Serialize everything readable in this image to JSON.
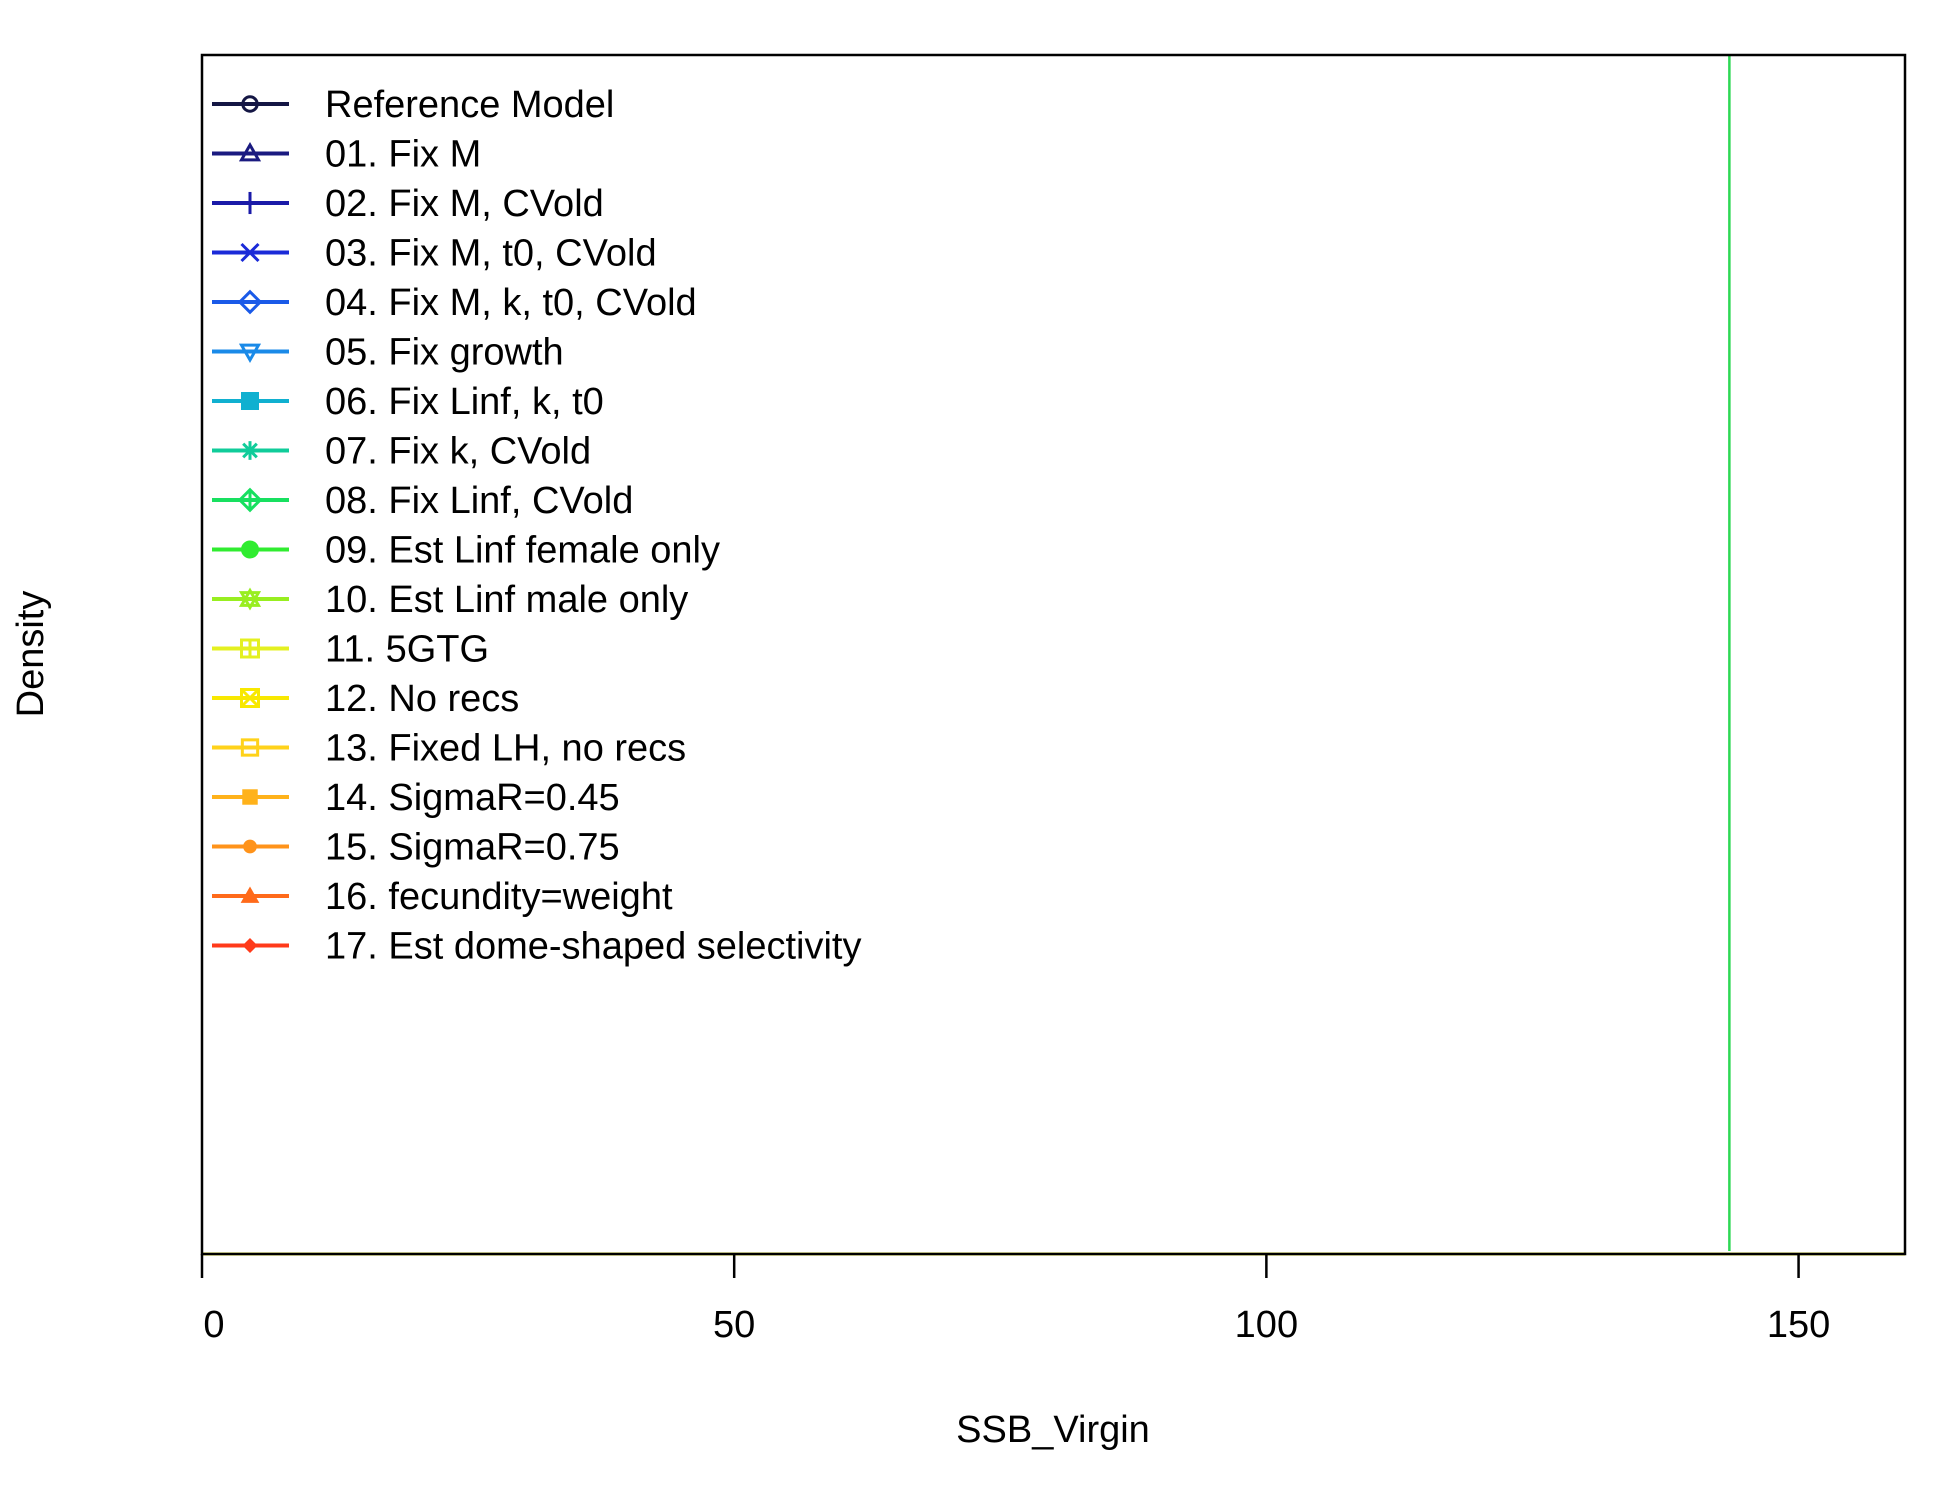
{
  "chart_data": {
    "type": "line",
    "title": "",
    "xlabel": "SSB_Virgin",
    "ylabel": "Density",
    "xlim": [
      0,
      160
    ],
    "ylim": [
      0,
      1
    ],
    "x_ticks": [
      0,
      50,
      100,
      150
    ],
    "grid": false,
    "legend_position": "top-left",
    "series": [
      {
        "name": "Reference Model",
        "color": "#141644",
        "marker": "circle-open"
      },
      {
        "name": "01. Fix M",
        "color": "#1a1a80",
        "marker": "triangle-open"
      },
      {
        "name": "02. Fix M, CVold",
        "color": "#1a1aa8",
        "marker": "plus"
      },
      {
        "name": "03. Fix M, t0, CVold",
        "color": "#1a2ad8",
        "marker": "cross"
      },
      {
        "name": "04. Fix M, k, t0, CVold",
        "color": "#1a5ae8",
        "marker": "diamond-open"
      },
      {
        "name": "05. Fix growth",
        "color": "#1a8ae8",
        "marker": "triangle-down-open"
      },
      {
        "name": "06. Fix Linf, k, t0",
        "color": "#10b0d0",
        "marker": "square-cross"
      },
      {
        "name": "07. Fix k, CVold",
        "color": "#10cc9a",
        "marker": "asterisk"
      },
      {
        "name": "08. Fix Linf, CVold",
        "color": "#18e060",
        "marker": "diamond-plus"
      },
      {
        "name": "09. Est Linf female only",
        "color": "#30ec30",
        "marker": "circle-plus"
      },
      {
        "name": "10. Est Linf male only",
        "color": "#98ee20",
        "marker": "star"
      },
      {
        "name": "11. 5GTG",
        "color": "#e4f020",
        "marker": "square-plus"
      },
      {
        "name": "12. No recs",
        "color": "#f8e800",
        "marker": "square-x"
      },
      {
        "name": "13. Fixed LH, no recs",
        "color": "#ffd21a",
        "marker": "square-open"
      },
      {
        "name": "14. SigmaR=0.45",
        "color": "#ffb21a",
        "marker": "square"
      },
      {
        "name": "15. SigmaR=0.75",
        "color": "#ff931a",
        "marker": "circle"
      },
      {
        "name": "16. fecundity=weight",
        "color": "#ff6a1a",
        "marker": "triangle"
      },
      {
        "name": "17. Est dome-shaped selectivity",
        "color": "#ff3a1a",
        "marker": "diamond"
      }
    ],
    "baseline_color": "#d8dc00",
    "vertical_lines": [
      {
        "x": 143.5,
        "color": "#2ed855"
      }
    ]
  }
}
